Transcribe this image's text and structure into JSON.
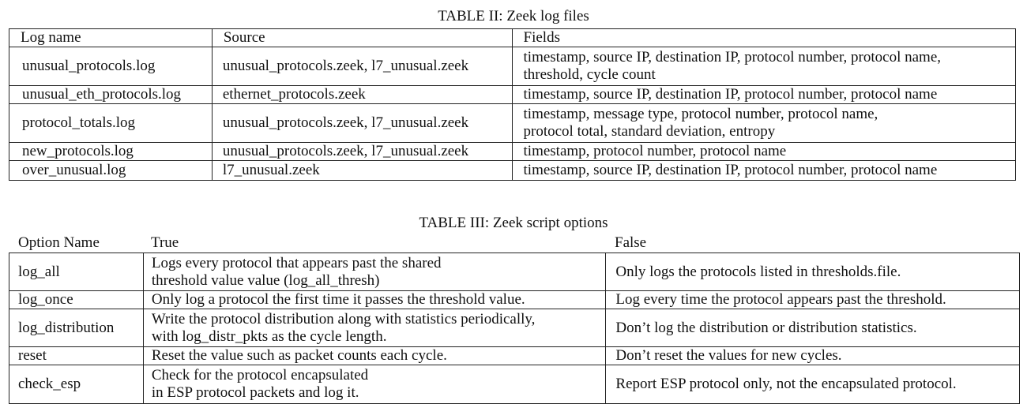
{
  "table2": {
    "caption": "TABLE II: Zeek log files",
    "headers": [
      "Log name",
      "Source",
      "Fields"
    ],
    "rows": [
      {
        "log_name": "unusual_protocols.log",
        "source": "unusual_protocols.zeek, l7_unusual.zeek",
        "fields_line1": "timestamp, source IP, destination IP, protocol number, protocol name,",
        "fields_line2": "threshold, cycle count"
      },
      {
        "log_name": "unusual_eth_protocols.log",
        "source": "ethernet_protocols.zeek",
        "fields_line1": "timestamp, source IP, destination IP, protocol number, protocol name",
        "fields_line2": ""
      },
      {
        "log_name": "protocol_totals.log",
        "source": "unusual_protocols.zeek, l7_unusual.zeek",
        "fields_line1": "timestamp, message type, protocol number, protocol name,",
        "fields_line2": "protocol total, standard deviation, entropy"
      },
      {
        "log_name": "new_protocols.log",
        "source": "unusual_protocols.zeek, l7_unusual.zeek",
        "fields_line1": "timestamp, protocol number, protocol name",
        "fields_line2": ""
      },
      {
        "log_name": "over_unusual.log",
        "source": "l7_unusual.zeek",
        "fields_line1": "timestamp, source IP, destination IP, protocol number, protocol name",
        "fields_line2": ""
      }
    ]
  },
  "table3": {
    "caption": "TABLE III: Zeek script options",
    "headers": [
      "Option Name",
      "True",
      "False"
    ],
    "rows": [
      {
        "option": "log_all",
        "true_line1": "Logs every protocol that appears past the shared",
        "true_line2": "threshold value value (log_all_thresh)",
        "false_text": "Only logs the protocols listed in thresholds.file."
      },
      {
        "option": "log_once",
        "true_line1": "Only log a protocol the first time it passes the threshold value.",
        "true_line2": "",
        "false_text": "Log every time the protocol appears past the threshold."
      },
      {
        "option": "log_distribution",
        "true_line1": "Write the protocol distribution along with statistics periodically,",
        "true_line2": "with log_distr_pkts as the cycle length.",
        "false_text": "Don’t log the distribution or distribution statistics."
      },
      {
        "option": "reset",
        "true_line1": "Reset the value such as packet counts each cycle.",
        "true_line2": "",
        "false_text": "Don’t reset the values for new cycles."
      },
      {
        "option": "check_esp",
        "true_line1": "Check for the protocol encapsulated",
        "true_line2": "in ESP protocol packets and log it.",
        "false_text": "Report ESP protocol only, not the encapsulated protocol."
      }
    ]
  }
}
